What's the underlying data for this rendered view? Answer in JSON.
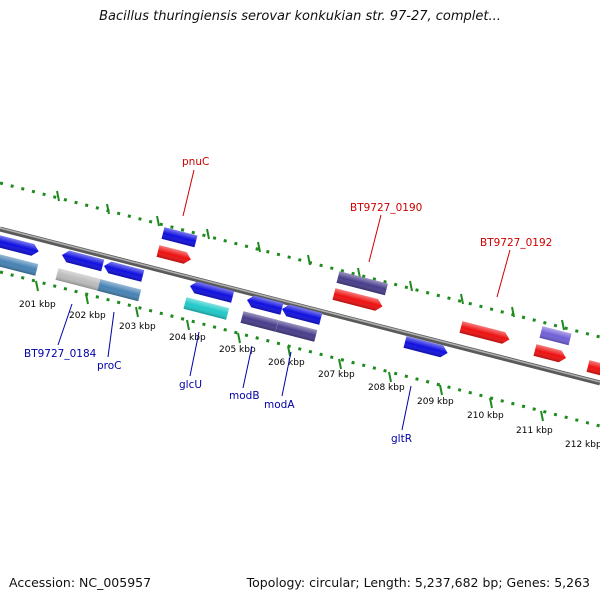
{
  "title": "Bacillus thuringiensis serovar konkukian str. 97-27, complet...",
  "footer": {
    "accession": "Accession: NC_005957",
    "summary": "Topology: circular; Length: 5,237,682 bp; Genes: 5,263"
  },
  "colors": {
    "backbone": "#7a7a7a",
    "dotted_ring": "#1f8a1f",
    "label_top": "#cc0000",
    "label_bottom": "#0000aa",
    "gene_blue": "#1010e0",
    "gene_red": "#ee1111",
    "gene_steel": "#4682b4",
    "gene_gray": "#bbbbbb",
    "gene_cyan": "#20c8c8",
    "gene_slate": "#483d8b",
    "gene_lavender": "#7060d8"
  },
  "kbp_ticks": [
    "201 kbp",
    "202 kbp",
    "203 kbp",
    "204 kbp",
    "205 kbp",
    "206 kbp",
    "207 kbp",
    "208 kbp",
    "209 kbp",
    "210 kbp",
    "211 kbp",
    "212 kbp"
  ],
  "gene_labels_top": [
    "pnuC",
    "BT9727_0190",
    "BT9727_0192"
  ],
  "gene_labels_bottom": [
    "BT9727_0184",
    "proC",
    "glcU",
    "modB",
    "modA",
    "gltR"
  ]
}
